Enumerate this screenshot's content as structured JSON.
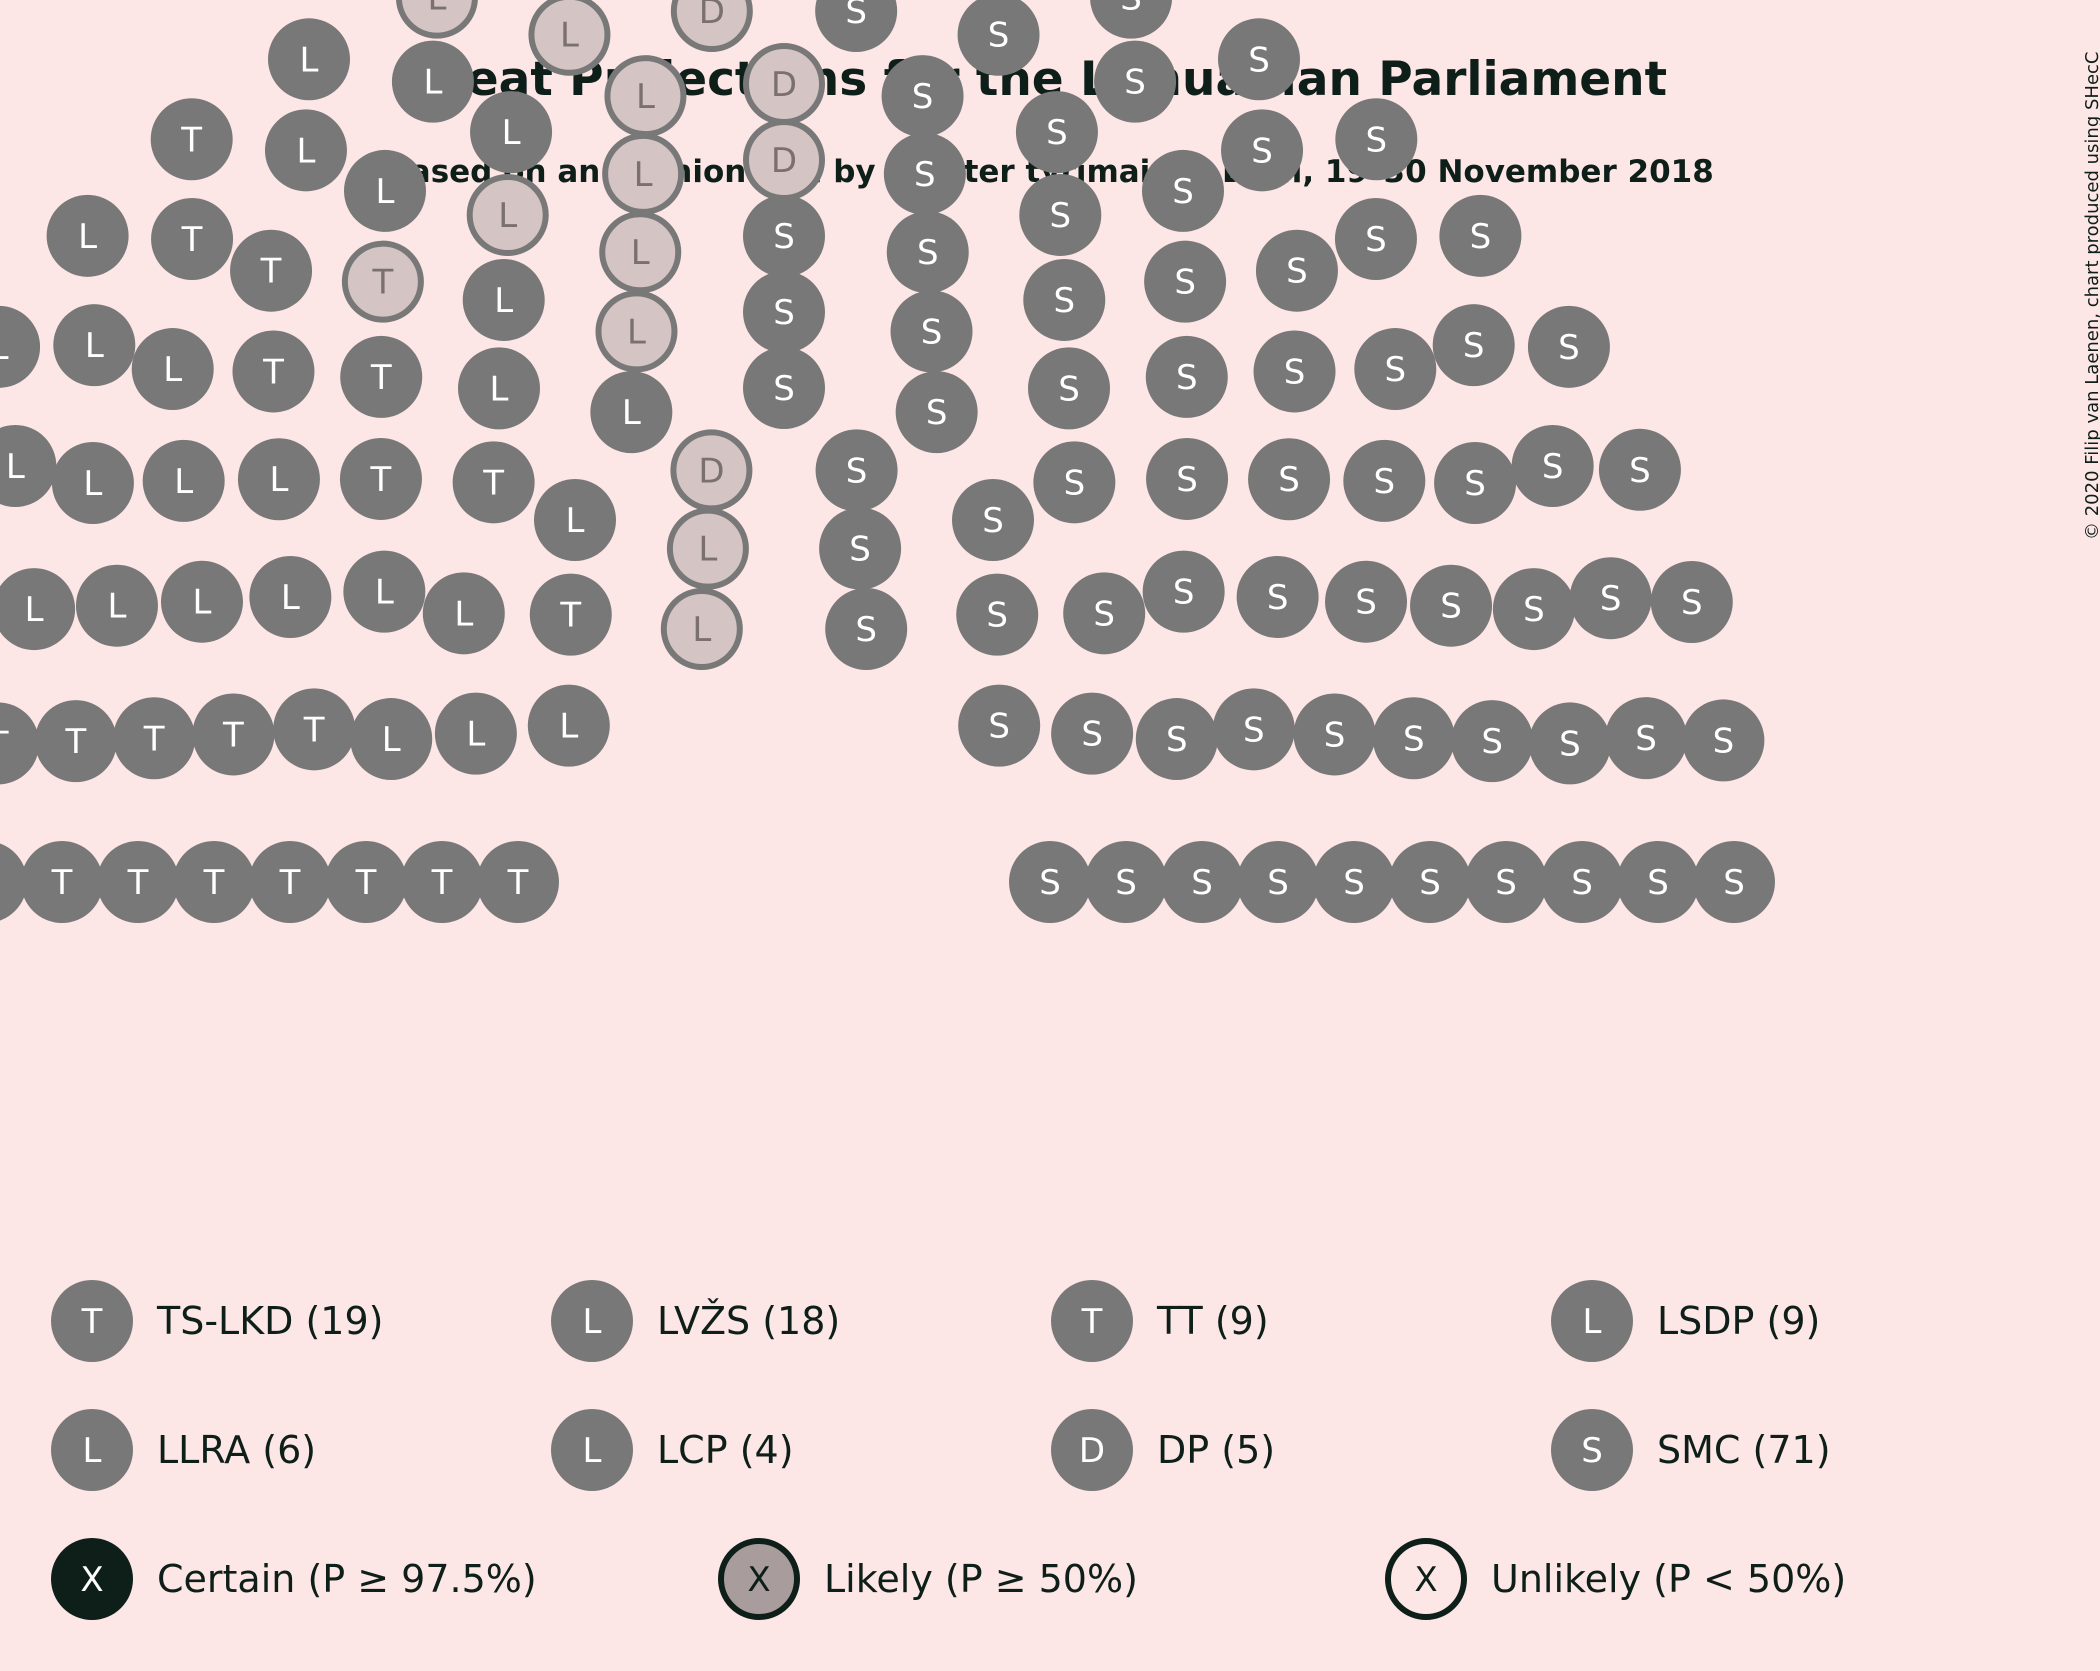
{
  "chart_data": {
    "type": "parliament",
    "title": "Seat Projections for the Lithuanian Parliament",
    "subtitle": "Based on an Opinion Poll by Spinter tyrimai for Delfi, 19–30 November 2018",
    "credit": "© 2020 Filip van Laenen, chart produced using SHecC",
    "total_seats": 141,
    "parties": [
      {
        "letter": "T",
        "label": "TS-LKD (19)",
        "seats": 19,
        "likely": 0
      },
      {
        "letter": "L",
        "label": "LVŽS (18)",
        "seats": 18,
        "likely": 0
      },
      {
        "letter": "T",
        "label": "TT (9)",
        "seats": 9,
        "likely": 1
      },
      {
        "letter": "L",
        "label": "LSDP (9)",
        "seats": 9,
        "likely": 2
      },
      {
        "letter": "L",
        "label": "LLRA (6)",
        "seats": 6,
        "likely": 4
      },
      {
        "letter": "L",
        "label": "LCP (4)",
        "seats": 4,
        "likely": 4
      },
      {
        "letter": "D",
        "label": "DP (5)",
        "seats": 5,
        "likely": 5
      },
      {
        "letter": "S",
        "label": "SMC (71)",
        "seats": 71,
        "likely": 0
      }
    ],
    "status_legend": [
      {
        "letter": "X",
        "label": "Certain (P ≥ 97.5%)",
        "status": "certain"
      },
      {
        "letter": "X",
        "label": "Likely (P ≥ 50%)",
        "status": "likely"
      },
      {
        "letter": "X",
        "label": "Unlikely (P < 50%)",
        "status": "unlikely"
      }
    ],
    "colors": {
      "background": "#fde6e6",
      "seat": "#787878",
      "seat_likely": "#d4c4c4",
      "likely_ring": "#787878",
      "certain": "#0e1f1a",
      "likely_legend": "#a89c9c",
      "text": "#0e1f1a"
    }
  }
}
